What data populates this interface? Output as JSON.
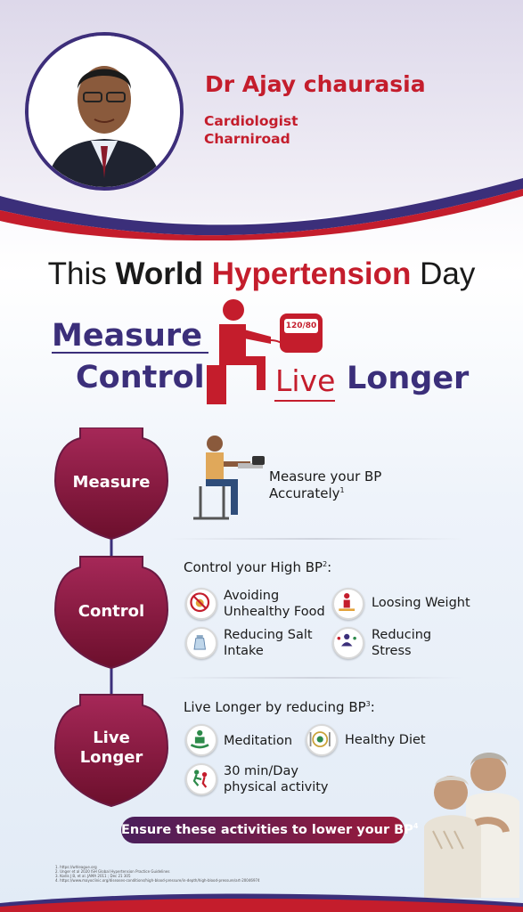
{
  "doctor": {
    "name": "Dr Ajay chaurasia",
    "title": "Cardiologist",
    "location": "Charniroad"
  },
  "headline": {
    "part1": "This ",
    "part2": "World",
    "part3": " ",
    "part4": "Hypertension",
    "part5": " Day"
  },
  "slogan": {
    "measure": "Measure",
    "control": "Control",
    "live": "Live",
    "longer": "Longer",
    "monitor_reading": "120/80"
  },
  "steps": {
    "measure": {
      "label": "Measure",
      "text_line1": "Measure your BP",
      "text_line2": "Accurately",
      "ref": "1"
    },
    "control": {
      "label": "Control",
      "heading": "Control your High BP",
      "ref": "2",
      "items": [
        {
          "line1": "Avoiding",
          "line2": "Unhealthy Food",
          "icon": "no-junk-food-icon"
        },
        {
          "line1": "Loosing Weight",
          "line2": "",
          "icon": "weight-loss-icon"
        },
        {
          "line1": "Reducing Salt",
          "line2": "Intake",
          "icon": "salt-shaker-icon"
        },
        {
          "line1": "Reducing",
          "line2": "Stress",
          "icon": "stress-icon"
        }
      ]
    },
    "live": {
      "label_line1": "Live",
      "label_line2": "Longer",
      "heading": "Live Longer by reducing BP",
      "ref": "3",
      "items": [
        {
          "line1": "Meditation",
          "line2": "",
          "icon": "meditation-icon"
        },
        {
          "line1": "Healthy Diet",
          "line2": "",
          "icon": "healthy-diet-icon"
        },
        {
          "line1": "30 min/Day",
          "line2": "physical activity",
          "icon": "running-icon"
        }
      ]
    }
  },
  "banner": {
    "text": "Ensure these activities to lower your BP",
    "ref": "4"
  },
  "references": [
    "1. https://whleague.org",
    "2. Unger et al 2020 ISH Global Hypertension Practice Guidelines",
    "3. Kodis J B, et al. JAMA 2011 ; Dec 21 305",
    "4. https://www.mayoclinic.org/diseases-conditions/high-blood-pressure/in-depth/high-blood-pressure/art-20046974"
  ],
  "colors": {
    "maroon": "#c41d2c",
    "navy": "#3b2f7a",
    "shield": "#8a1740"
  }
}
